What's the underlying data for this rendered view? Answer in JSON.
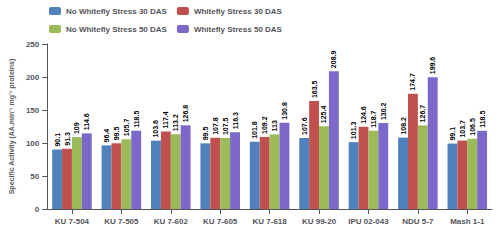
{
  "chart_data": {
    "type": "bar",
    "categories": [
      "KU 7-504",
      "KU 7-505",
      "KU 7-602",
      "KU 7-605",
      "KU 7-618",
      "KU 99-20",
      "IPU 02-043",
      "NDU 5-7",
      "Mash 1-1"
    ],
    "series": [
      {
        "name": "No Whitefly Stress 30 DAS",
        "color": "#4F81BD",
        "values": [
          90.1,
          96.4,
          103.6,
          99.5,
          101.8,
          107.6,
          101.3,
          108.2,
          99.1
        ]
      },
      {
        "name": "Whitefly Stress 30 DAS",
        "color": "#C0504D",
        "values": [
          91.3,
          99.5,
          117.4,
          107.8,
          109.2,
          163.5,
          124.6,
          174.7,
          103.7
        ]
      },
      {
        "name": "No Whitefly Stress 50 DAS",
        "color": "#9BBB59",
        "values": [
          109,
          105.7,
          113.2,
          107.5,
          113,
          125.4,
          118.7,
          126.7,
          106.5
        ]
      },
      {
        "name": "Whitefly Stress 50 DAS",
        "color": "#7B68C8",
        "values": [
          114.6,
          118.5,
          126.8,
          116.3,
          130.8,
          208.9,
          130.2,
          199.6,
          118.5
        ]
      }
    ],
    "ylabel": "Specific Activity (AA.min⁻¹ mg⁻¹ proteins)",
    "ylim": [
      0,
      250
    ],
    "yticks": [
      0,
      50,
      100,
      150,
      200,
      250
    ],
    "data_labels": true,
    "legend": "upper left",
    "grid": false
  }
}
